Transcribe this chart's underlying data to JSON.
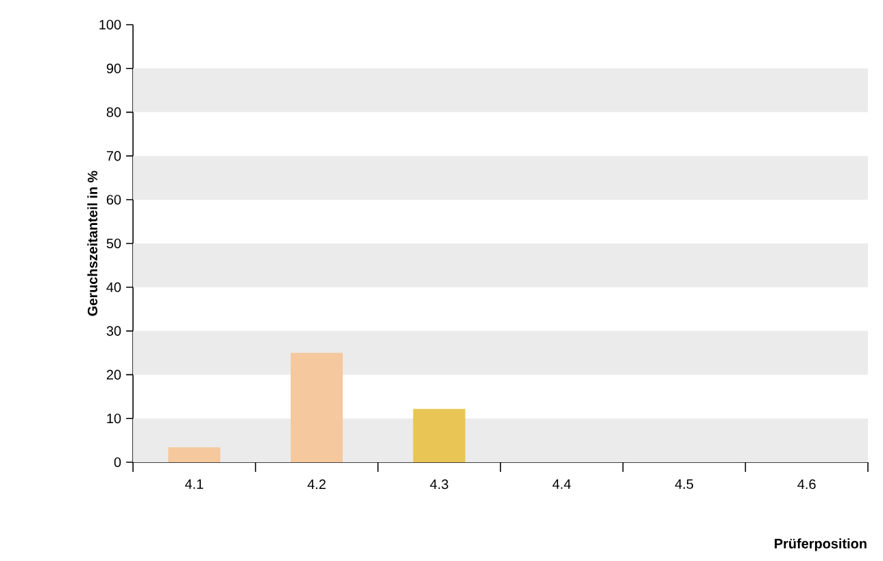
{
  "chart_data": {
    "type": "bar",
    "xlabel": "Prüferposition",
    "ylabel": "Geruchszeitanteil in %",
    "categories": [
      "4.1",
      "4.2",
      "4.3",
      "4.4",
      "4.5",
      "4.6"
    ],
    "values": [
      3.4,
      25,
      12.2,
      0,
      0,
      0
    ],
    "colors": [
      "#f5c89e",
      "#f5c89e",
      "#e8c555",
      "#f5c89e",
      "#f5c89e",
      "#f5c89e"
    ],
    "ylim": [
      0,
      100
    ],
    "yticks": [
      0,
      10,
      20,
      30,
      40,
      50,
      60,
      70,
      80,
      90,
      100
    ],
    "bands": [
      {
        "axis": "y",
        "from": 0,
        "to": 10,
        "color": "#ebebeb"
      },
      {
        "axis": "y",
        "from": 20,
        "to": 30,
        "color": "#ebebeb"
      },
      {
        "axis": "y",
        "from": 40,
        "to": 50,
        "color": "#ebebeb"
      },
      {
        "axis": "y",
        "from": 60,
        "to": 70,
        "color": "#ebebeb"
      },
      {
        "axis": "y",
        "from": 80,
        "to": 90,
        "color": "#ebebeb"
      }
    ],
    "grid": false
  }
}
